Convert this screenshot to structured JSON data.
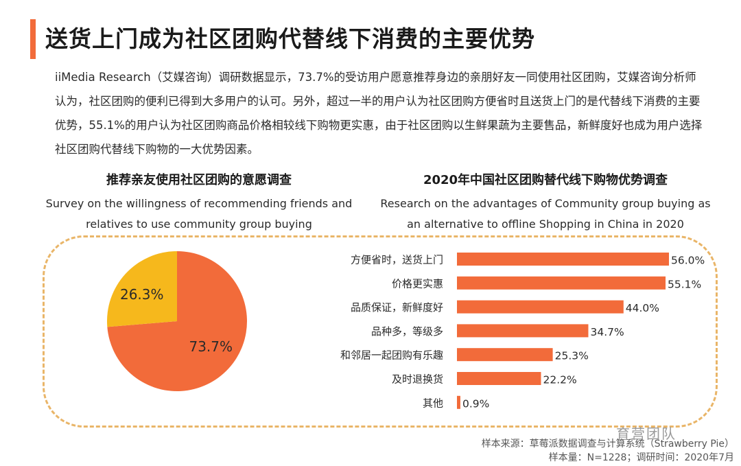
{
  "page": {
    "title": "送货上门成为社区团购代替线下消费的主要优势",
    "intro": "iiMedia Research（艾媒咨询）调研数据显示，73.7%的受访用户愿意推荐身边的亲朋好友一同使用社区团购，艾媒咨询分析师认为，社区团购的便利已得到大多用户的认可。另外，超过一半的用户认为社区团购方便省时且送货上门的是代替线下消费的主要优势，55.1%的用户认为社区团购商品价格相较线下购物更实惠，由于社区团购以生鲜果蔬为主要售品，新鲜度好也成为用户选择社区团购代替线下购物的一大优势因素。",
    "accent_color": "#f26b3a"
  },
  "chart_data": [
    {
      "type": "pie",
      "title": "推荐亲友使用社区团购的意愿调查",
      "subtitle_line1": "Survey on the willingness of recommending friends and",
      "subtitle_line2": "relatives to use community group buying",
      "slices": [
        {
          "label": "73.7%",
          "value": 73.7,
          "color": "#f26b3a"
        },
        {
          "label": "26.3%",
          "value": 26.3,
          "color": "#f6b81c"
        }
      ]
    },
    {
      "type": "bar",
      "orientation": "horizontal",
      "title": "2020年中国社区团购替代线下购物优势调查",
      "subtitle_line1": "Research on the advantages of Community group buying as",
      "subtitle_line2": "an alternative to offline Shopping in China in 2020",
      "categories": [
        "方便省时，送货上门",
        "价格更实惠",
        "品质保证，新鲜度好",
        "品种多，等级多",
        "和邻居一起团购有乐趣",
        "及时退换货",
        "其他"
      ],
      "values": [
        56.0,
        55.1,
        44.0,
        34.7,
        25.3,
        22.2,
        0.9
      ],
      "value_labels": [
        "56.0%",
        "55.1%",
        "44.0%",
        "34.7%",
        "25.3%",
        "22.2%",
        "0.9%"
      ],
      "xlim": [
        0,
        56
      ],
      "bar_color": "#f26b3a"
    }
  ],
  "source": {
    "line1": "样本来源：草莓派数据调查与计算系统（Strawberry Pie）",
    "line2": "样本量：N=1228；调研时间：2020年7月"
  },
  "watermark": "育营团队"
}
